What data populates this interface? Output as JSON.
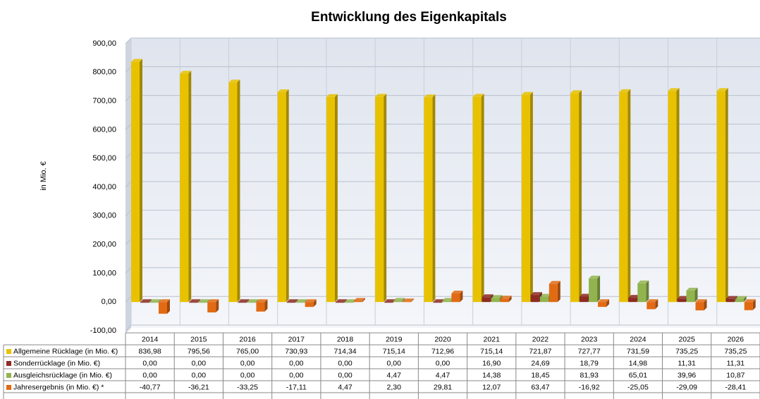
{
  "chart_data": {
    "type": "bar",
    "title": "Entwicklung des Eigenkapitals",
    "y_label": "in Mio. €",
    "categories": [
      "2014",
      "2015",
      "2016",
      "2017",
      "2018",
      "2019",
      "2020",
      "2021",
      "2022",
      "2023",
      "2024",
      "2025",
      "2026"
    ],
    "series": [
      {
        "name": "Allgemeine Rücklage (in Mio. €)",
        "color": "#e8c200",
        "values": [
          836.98,
          795.56,
          765.0,
          730.93,
          714.34,
          715.14,
          712.96,
          715.14,
          721.87,
          727.77,
          731.59,
          735.25,
          735.25
        ],
        "value_labels": [
          "836,98",
          "795,56",
          "765,00",
          "730,93",
          "714,34",
          "715,14",
          "712,96",
          "715,14",
          "721,87",
          "727,77",
          "731,59",
          "735,25",
          "735,25"
        ]
      },
      {
        "name": "Sonderrücklage (in Mio. €)",
        "color": "#8e2b22",
        "values": [
          0,
          0,
          0,
          0,
          0,
          0,
          0,
          16.9,
          24.69,
          18.79,
          14.98,
          11.31,
          11.31
        ],
        "value_labels": [
          "0,00",
          "0,00",
          "0,00",
          "0,00",
          "0,00",
          "0,00",
          "0,00",
          "16,90",
          "24,69",
          "18,79",
          "14,98",
          "11,31",
          "11,31"
        ]
      },
      {
        "name": "Ausgleichsrücklage (in Mio. €)",
        "color": "#92b44e",
        "values": [
          0,
          0,
          0,
          0,
          0,
          4.47,
          4.47,
          14.38,
          18.45,
          81.93,
          65.01,
          39.96,
          10.87
        ],
        "value_labels": [
          "0,00",
          "0,00",
          "0,00",
          "0,00",
          "0,00",
          "4,47",
          "4,47",
          "14,38",
          "18,45",
          "81,93",
          "65,01",
          "39,96",
          "10,87"
        ]
      },
      {
        "name": "Jahresergebnis (in Mio. €) *",
        "color": "#e26a12",
        "values": [
          -40.77,
          -36.21,
          -33.25,
          -17.11,
          4.47,
          2.3,
          29.81,
          12.07,
          63.47,
          -16.92,
          -25.05,
          -29.09,
          -28.41
        ],
        "value_labels": [
          "-40,77",
          "-36,21",
          "-33,25",
          "-17,11",
          "4,47",
          "2,30",
          "29,81",
          "12,07",
          "63,47",
          "-16,92",
          "-25,05",
          "-29,09",
          "-28,41"
        ]
      }
    ],
    "ylim": [
      -100,
      900
    ],
    "yticks": [
      {
        "value": -100,
        "label": "-100,00"
      },
      {
        "value": 0,
        "label": "0,00"
      },
      {
        "value": 100,
        "label": "100,00"
      },
      {
        "value": 200,
        "label": "200,00"
      },
      {
        "value": 300,
        "label": "300,00"
      },
      {
        "value": 400,
        "label": "400,00"
      },
      {
        "value": 500,
        "label": "500,00"
      },
      {
        "value": 600,
        "label": "600,00"
      },
      {
        "value": 700,
        "label": "700,00"
      },
      {
        "value": 800,
        "label": "800,00"
      },
      {
        "value": 900,
        "label": "900,00"
      }
    ],
    "grid": true
  }
}
